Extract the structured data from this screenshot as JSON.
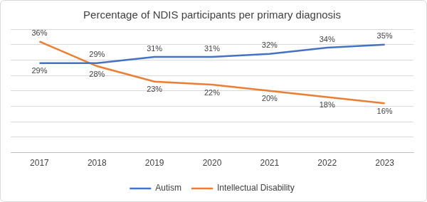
{
  "chart_data": {
    "type": "line",
    "title": "Percentage of NDIS participants per primary diagnosis",
    "categories": [
      "2017",
      "2018",
      "2019",
      "2020",
      "2021",
      "2022",
      "2023"
    ],
    "series": [
      {
        "name": "Autism",
        "color": "#4472c4",
        "values": [
          29,
          29,
          31,
          31,
          32,
          34,
          35
        ],
        "value_labels": [
          "29%",
          "29%",
          "31%",
          "31%",
          "32%",
          "34%",
          "35%"
        ]
      },
      {
        "name": "Intellectual Disability",
        "color": "#ed7d31",
        "values": [
          36,
          28,
          23,
          22,
          20,
          18,
          16
        ],
        "value_labels": [
          "36%",
          "28%",
          "23%",
          "22%",
          "20%",
          "18%",
          "16%"
        ]
      }
    ],
    "ylim": [
      0,
      40
    ],
    "yticks": [
      0,
      5,
      10,
      15,
      20,
      25,
      30,
      35,
      40
    ],
    "grid": true,
    "legend": "bottom",
    "data_labels": true,
    "tick_labels": "x"
  }
}
